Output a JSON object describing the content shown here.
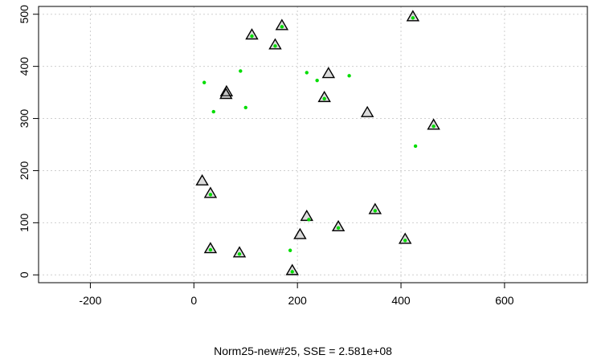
{
  "chart_data": {
    "type": "scatter",
    "title": "",
    "xlabel": "Norm25-new#25,   SSE = 2.581e+08",
    "ylabel": "",
    "xlim": [
      -300,
      760
    ],
    "ylim": [
      -15,
      515
    ],
    "x_ticks": [
      "-200",
      "0",
      "200",
      "400",
      "600"
    ],
    "y_ticks": [
      "0",
      "100",
      "200",
      "300",
      "400",
      "500"
    ],
    "grid": true,
    "colors": {
      "triangle_outline": "#000000",
      "triangle_fill": "#9a9a9a",
      "center_point": "#00dd00",
      "grid": "#cfcfcf",
      "axis": "#000000"
    },
    "series": [
      {
        "marker": "triangle",
        "points": [
          {
            "x": 423,
            "y": 495
          },
          {
            "x": 170,
            "y": 478
          },
          {
            "x": 112,
            "y": 460
          },
          {
            "x": 157,
            "y": 441
          },
          {
            "x": 260,
            "y": 386
          },
          {
            "x": 63,
            "y": 351
          },
          {
            "x": 62,
            "y": 346
          },
          {
            "x": 252,
            "y": 340
          },
          {
            "x": 335,
            "y": 311
          },
          {
            "x": 463,
            "y": 287
          },
          {
            "x": 16,
            "y": 180
          },
          {
            "x": 32,
            "y": 156
          },
          {
            "x": 350,
            "y": 125
          },
          {
            "x": 218,
            "y": 112
          },
          {
            "x": 279,
            "y": 92
          },
          {
            "x": 205,
            "y": 77
          },
          {
            "x": 408,
            "y": 68
          },
          {
            "x": 32,
            "y": 50
          },
          {
            "x": 88,
            "y": 42
          },
          {
            "x": 190,
            "y": 8
          }
        ]
      },
      {
        "marker": "dot",
        "points": [
          {
            "x": 423,
            "y": 493
          },
          {
            "x": 170,
            "y": 476
          },
          {
            "x": 112,
            "y": 458
          },
          {
            "x": 157,
            "y": 439
          },
          {
            "x": 90,
            "y": 391
          },
          {
            "x": 218,
            "y": 388
          },
          {
            "x": 300,
            "y": 382
          },
          {
            "x": 238,
            "y": 373
          },
          {
            "x": 20,
            "y": 369
          },
          {
            "x": 252,
            "y": 338
          },
          {
            "x": 100,
            "y": 321
          },
          {
            "x": 38,
            "y": 313
          },
          {
            "x": 463,
            "y": 285
          },
          {
            "x": 428,
            "y": 247
          },
          {
            "x": 32,
            "y": 154
          },
          {
            "x": 350,
            "y": 123
          },
          {
            "x": 222,
            "y": 106
          },
          {
            "x": 279,
            "y": 90
          },
          {
            "x": 408,
            "y": 66
          },
          {
            "x": 32,
            "y": 48
          },
          {
            "x": 186,
            "y": 47
          },
          {
            "x": 88,
            "y": 40
          },
          {
            "x": 190,
            "y": 6
          }
        ]
      }
    ]
  }
}
